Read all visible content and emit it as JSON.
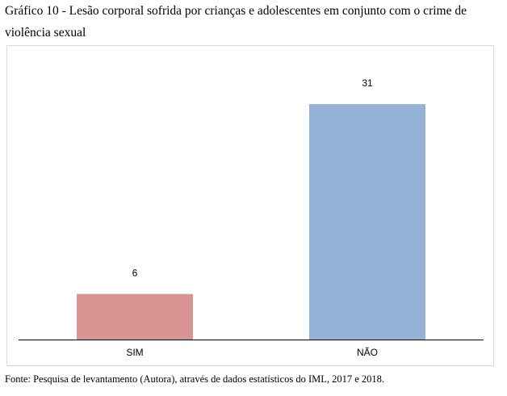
{
  "title": "Gráfico 10 - Lesão corporal sofrida por crianças e adolescentes em conjunto com o crime de violência sexual",
  "source": "Fonte: Pesquisa de levantamento (Autora), através de dados estatísticos do IML, 2017 e 2018.",
  "chart_data": {
    "type": "bar",
    "categories": [
      "SIM",
      "NÃO"
    ],
    "values": [
      6,
      31
    ],
    "data_labels": [
      "6",
      "31"
    ],
    "colors": [
      "#d99594",
      "#95b3d7"
    ],
    "ylim": [
      0,
      36
    ],
    "grid": false,
    "legend": "none",
    "title": "",
    "xlabel": "",
    "ylabel": ""
  }
}
